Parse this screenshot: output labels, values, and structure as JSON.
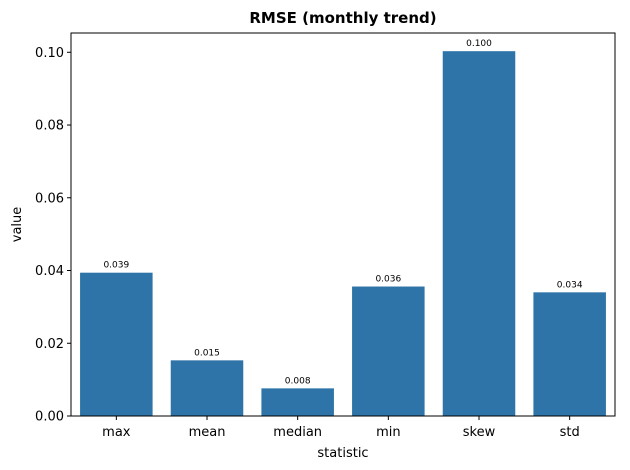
{
  "chart_data": {
    "type": "bar",
    "title": "RMSE (monthly trend)",
    "xlabel": "statistic",
    "ylabel": "value",
    "categories": [
      "max",
      "mean",
      "median",
      "min",
      "skew",
      "std"
    ],
    "values": [
      0.0394,
      0.0153,
      0.0076,
      0.0356,
      0.1003,
      0.034
    ],
    "data_labels": [
      "0.039",
      "0.015",
      "0.008",
      "0.036",
      "0.100",
      "0.034"
    ],
    "ylim": [
      0,
      0.1053
    ],
    "yticks": [
      0.0,
      0.02,
      0.04,
      0.06,
      0.08,
      0.1
    ],
    "ytick_labels": [
      "0.00",
      "0.02",
      "0.04",
      "0.06",
      "0.08",
      "0.10"
    ],
    "bar_color": "#2e74a8",
    "grid": false,
    "legend": "none"
  }
}
